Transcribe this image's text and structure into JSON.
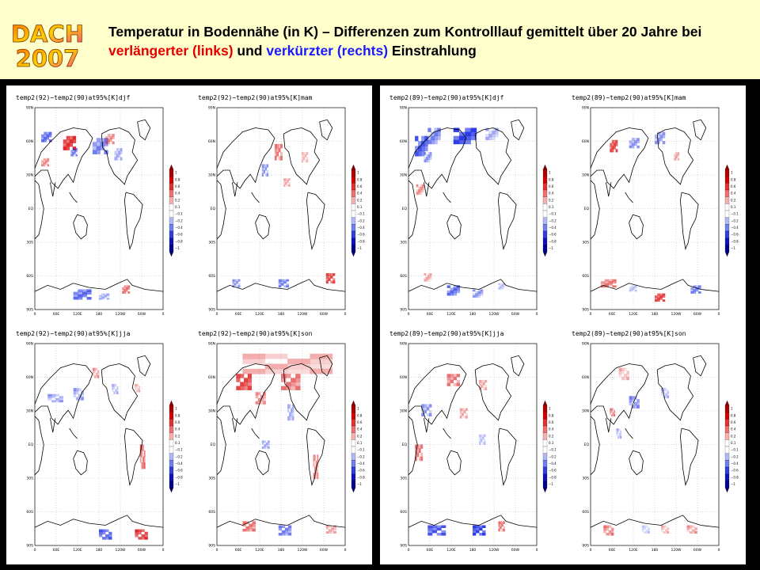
{
  "header": {
    "logo_line1": "DACH",
    "logo_line2": "2007",
    "title_part1": "Temperatur in Bodennähe (in K) – Differenzen zum Kontrolllauf gemittelt über 20 Jahre bei ",
    "title_red": "verlängerter (links)",
    "title_mid": " und ",
    "title_blue": "verkürzter (rechts)",
    "title_end": " Einstrahlung"
  },
  "colors": {
    "red": "#e60000",
    "blue": "#1a1aff",
    "background": "#ffffcc"
  },
  "maps": [
    {
      "id": "l-djf",
      "title": "temp2(92)−temp2(90)at95%[K]djf",
      "panel": "left"
    },
    {
      "id": "l-mam",
      "title": "temp2(92)−temp2(90)at95%[K]mam",
      "panel": "left"
    },
    {
      "id": "l-jja",
      "title": "temp2(92)−temp2(90)at95%[K]jja",
      "panel": "left"
    },
    {
      "id": "l-son",
      "title": "temp2(92)−temp2(90)at95%[K]son",
      "panel": "left"
    },
    {
      "id": "r-djf",
      "title": "temp2(89)−temp2(90)at95%[K]djf",
      "panel": "right"
    },
    {
      "id": "r-mam",
      "title": "temp2(89)−temp2(90)at95%[K]mam",
      "panel": "right"
    },
    {
      "id": "r-jja",
      "title": "temp2(89)−temp2(90)at95%[K]jja",
      "panel": "right"
    },
    {
      "id": "r-son",
      "title": "temp2(89)−temp2(90)at95%[K]son",
      "panel": "right"
    }
  ],
  "lat_ticks": [
    "90N",
    "60N",
    "30N",
    "EQ",
    "30S",
    "60S",
    "90S"
  ],
  "lon_ticks": [
    "0",
    "60E",
    "120E",
    "180",
    "120W",
    "60W",
    "0"
  ],
  "colorbar_ticks": [
    "1",
    "0.8",
    "0.6",
    "0.4",
    "0.2",
    "0.1",
    "−0.1",
    "−0.2",
    "−0.4",
    "−0.6",
    "−0.8",
    "−1"
  ]
}
